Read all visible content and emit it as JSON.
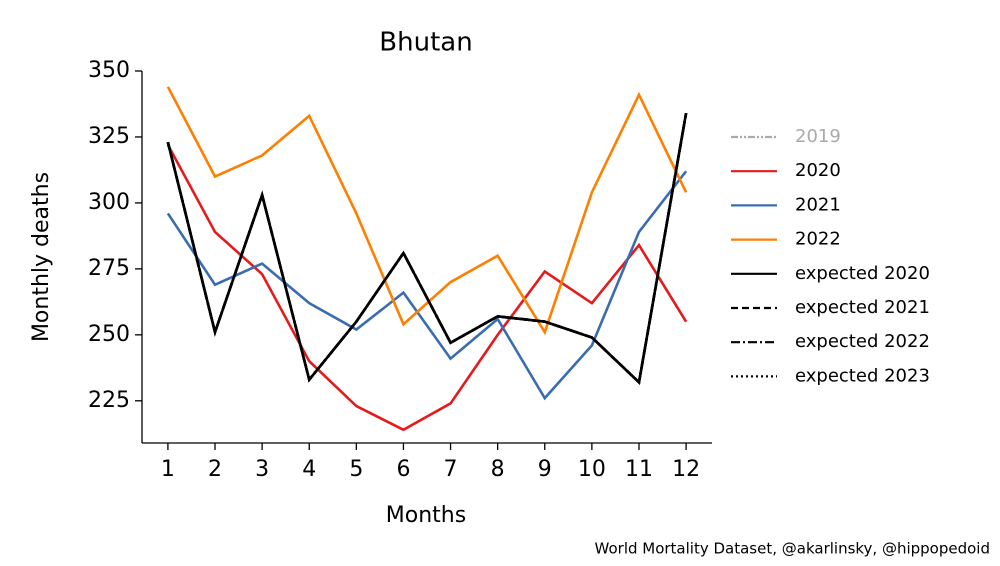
{
  "chart_data": {
    "type": "line",
    "title": "Bhutan",
    "xlabel": "Months",
    "ylabel": "Monthly deaths",
    "source": "World Mortality Dataset, @akarlinsky, @hippopedoid",
    "x": [
      1,
      2,
      3,
      4,
      5,
      6,
      7,
      8,
      9,
      10,
      11,
      12
    ],
    "xlim": [
      0.45,
      12.55
    ],
    "xticks": [
      1,
      2,
      3,
      4,
      5,
      6,
      7,
      8,
      9,
      10,
      11,
      12
    ],
    "ylim": [
      209,
      350
    ],
    "yticks": [
      225,
      250,
      275,
      300,
      325,
      350
    ],
    "legend": "right",
    "series": [
      {
        "name": "2019",
        "color": "#aaaaaa",
        "dash": "dashdotdot",
        "values": [
          null,
          null,
          null,
          null,
          null,
          null,
          null,
          null,
          null,
          null,
          null,
          null
        ]
      },
      {
        "name": "2020",
        "color": "#e41a1c",
        "dash": "solid",
        "values": [
          322,
          289,
          273,
          240,
          223,
          214,
          224,
          250,
          274,
          262,
          284,
          255
        ]
      },
      {
        "name": "2021",
        "color": "#3a6db0",
        "dash": "solid",
        "values": [
          296,
          269,
          277,
          262,
          252,
          266,
          241,
          256,
          226,
          246,
          289,
          312
        ]
      },
      {
        "name": "2022",
        "color": "#ff7f00",
        "dash": "solid",
        "values": [
          344,
          310,
          318,
          333,
          296,
          254,
          270,
          280,
          251,
          304,
          341,
          304
        ]
      },
      {
        "name": "expected 2020",
        "color": "#000000",
        "dash": "solid",
        "values": [
          323,
          251,
          303,
          233,
          255,
          281,
          247,
          257,
          255,
          249,
          232,
          334
        ]
      },
      {
        "name": "expected 2021",
        "color": "#000000",
        "dash": "dashed",
        "values": [
          323,
          251,
          303,
          233,
          255,
          281,
          247,
          257,
          255,
          249,
          232,
          334
        ]
      },
      {
        "name": "expected 2022",
        "color": "#000000",
        "dash": "dashdot",
        "values": [
          323,
          251,
          303,
          233,
          255,
          281,
          247,
          257,
          255,
          249,
          232,
          334
        ]
      },
      {
        "name": "expected 2023",
        "color": "#000000",
        "dash": "dotted",
        "values": [
          323,
          251,
          303,
          233,
          255,
          281,
          247,
          257,
          255,
          249,
          232,
          334
        ]
      }
    ]
  }
}
